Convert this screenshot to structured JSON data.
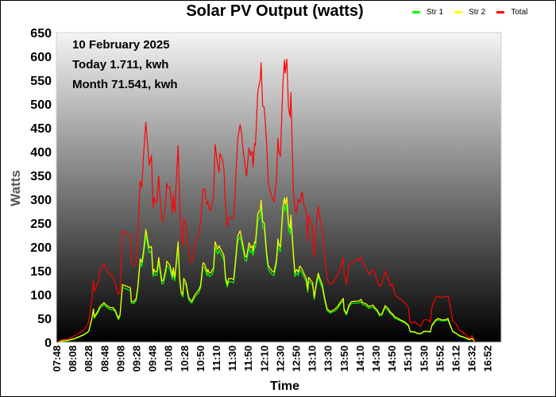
{
  "chart_data": {
    "type": "line",
    "title": "Solar PV Output (watts)",
    "xlabel": "Time",
    "ylabel": "Watts",
    "ylim": [
      0,
      650
    ],
    "xlim": [
      "07:48",
      "17:00"
    ],
    "yticks": [
      0,
      50,
      100,
      150,
      200,
      250,
      300,
      350,
      400,
      450,
      500,
      550,
      600,
      650
    ],
    "xtick_labels": [
      "07:48",
      "08:08",
      "08:28",
      "08:48",
      "09:08",
      "09:28",
      "09:48",
      "10:08",
      "10:28",
      "10:50",
      "11:10",
      "11:30",
      "11:50",
      "12:10",
      "12:30",
      "12:50",
      "13:10",
      "13:30",
      "13:50",
      "14:10",
      "14:30",
      "14:50",
      "15:10",
      "15:30",
      "15:52",
      "16:12",
      "16:32",
      "16:52"
    ],
    "grid": false,
    "legend_position": "top-right",
    "background": "vertical gradient light grey to black",
    "annotations": [
      "10 February 2025",
      "Today 1.711, kwh",
      "Month 71.541, kwh"
    ],
    "x": [
      "07:49",
      "07:55",
      "08:02",
      "08:11",
      "08:22",
      "08:28",
      "08:32",
      "08:34",
      "08:35",
      "08:40",
      "08:42",
      "08:47",
      "08:50",
      "08:55",
      "08:58",
      "09:01",
      "09:05",
      "09:07",
      "09:10",
      "09:16",
      "09:20",
      "09:21",
      "09:24",
      "09:27",
      "09:29",
      "09:32",
      "09:34",
      "09:36",
      "09:39",
      "09:42",
      "09:43",
      "09:46",
      "09:48",
      "09:49",
      "09:51",
      "09:53",
      "09:55",
      "09:57",
      "09:59",
      "10:01",
      "10:04",
      "10:05",
      "10:06",
      "10:09",
      "10:12",
      "10:13",
      "10:15",
      "10:19",
      "10:21",
      "10:23",
      "10:25",
      "10:26",
      "10:29",
      "10:32",
      "10:34",
      "10:36",
      "10:40",
      "10:45",
      "10:47",
      "10:50",
      "10:52",
      "10:55",
      "10:56",
      "10:58",
      "11:00",
      "11:03",
      "11:05",
      "11:08",
      "11:10",
      "11:11",
      "11:14",
      "11:16",
      "11:18",
      "11:20",
      "11:22",
      "11:24",
      "11:28",
      "11:31",
      "11:33",
      "11:36",
      "11:38",
      "11:40",
      "11:42",
      "11:44",
      "11:47",
      "11:49",
      "11:51",
      "11:52",
      "11:54",
      "11:55",
      "11:58",
      "12:01",
      "12:02",
      "12:04",
      "12:06",
      "12:09",
      "12:11",
      "12:14",
      "12:16",
      "12:18",
      "12:21",
      "12:23",
      "12:24",
      "12:26",
      "12:29",
      "12:31",
      "12:32",
      "12:34",
      "12:36",
      "12:38",
      "12:39",
      "12:42",
      "12:44",
      "12:46",
      "12:48",
      "12:50",
      "12:53",
      "12:55",
      "12:58",
      "13:00",
      "13:01",
      "13:04",
      "13:06",
      "13:08",
      "13:11",
      "13:13",
      "13:15",
      "13:18",
      "13:21",
      "13:24",
      "13:28",
      "13:30",
      "13:34",
      "13:37",
      "13:40",
      "13:44",
      "13:45",
      "13:48",
      "13:51",
      "13:54",
      "13:58",
      "14:01",
      "14:03",
      "14:06",
      "14:08",
      "14:12",
      "14:16",
      "14:21",
      "14:23",
      "14:26",
      "14:29",
      "14:32",
      "14:36",
      "14:40",
      "14:43",
      "14:45",
      "14:48",
      "14:51",
      "14:56",
      "15:00",
      "15:05",
      "15:07",
      "15:10",
      "15:12",
      "15:16",
      "15:20",
      "15:24",
      "15:29",
      "15:32",
      "15:34",
      "15:39",
      "15:42",
      "15:46",
      "15:51",
      "15:54",
      "15:57",
      "16:00",
      "16:04",
      "16:08",
      "16:15",
      "16:20",
      "16:24",
      "16:28"
    ],
    "series": [
      {
        "name": "Str 1",
        "color": "#00ff00",
        "values": [
          0,
          2,
          3,
          7,
          15,
          22,
          47,
          66,
          50,
          64,
          71,
          79,
          74,
          68,
          69,
          64,
          47,
          55,
          115,
          111,
          108,
          82,
          81,
          87,
          111,
          166,
          159,
          180,
          225,
          196,
          188,
          191,
          138,
          145,
          140,
          142,
          169,
          143,
          122,
          124,
          148,
          161,
          160,
          153,
          132,
          148,
          129,
          200,
          127,
          101,
          95,
          127,
          119,
          90,
          85,
          82,
          95,
          105,
          114,
          159,
          156,
          140,
          145,
          138,
          140,
          148,
          200,
          185,
          193,
          188,
          180,
          172,
          129,
          116,
          127,
          127,
          125,
          175,
          212,
          222,
          206,
          190,
          172,
          170,
          199,
          188,
          193,
          182,
          200,
          199,
          256,
          264,
          283,
          240,
          238,
          177,
          153,
          145,
          142,
          140,
          163,
          206,
          196,
          190,
          270,
          288,
          275,
          289,
          238,
          227,
          254,
          180,
          138,
          145,
          140,
          152,
          145,
          138,
          127,
          105,
          129,
          123,
          119,
          90,
          123,
          138,
          127,
          114,
          87,
          66,
          61,
          63,
          66,
          71,
          79,
          87,
          66,
          57,
          74,
          81,
          82,
          82,
          82,
          85,
          79,
          77,
          71,
          74,
          69,
          65,
          55,
          57,
          73,
          66,
          59,
          57,
          50,
          48,
          44,
          41,
          34,
          22,
          21,
          21,
          18,
          17,
          22,
          22,
          21,
          34,
          45,
          47,
          45,
          45,
          47,
          33,
          22,
          18,
          13,
          9,
          5,
          7,
          0
        ]
      },
      {
        "name": "Str 2",
        "color": "#ffff00",
        "values": [
          0,
          3,
          4,
          8,
          16,
          23,
          50,
          70,
          53,
          67,
          75,
          83,
          78,
          72,
          73,
          67,
          50,
          58,
          121,
          117,
          114,
          86,
          85,
          92,
          117,
          175,
          167,
          189,
          237,
          206,
          198,
          201,
          145,
          153,
          147,
          150,
          178,
          151,
          128,
          131,
          156,
          170,
          168,
          161,
          139,
          156,
          136,
          211,
          134,
          106,
          100,
          134,
          125,
          95,
          89,
          86,
          100,
          111,
          120,
          167,
          164,
          147,
          153,
          145,
          147,
          156,
          211,
          195,
          203,
          198,
          189,
          181,
          136,
          122,
          134,
          134,
          132,
          184,
          223,
          234,
          217,
          200,
          181,
          179,
          209,
          198,
          203,
          192,
          211,
          209,
          270,
          278,
          298,
          253,
          250,
          186,
          161,
          153,
          149,
          147,
          172,
          217,
          206,
          200,
          284,
          303,
          289,
          304,
          250,
          239,
          267,
          189,
          145,
          153,
          147,
          160,
          153,
          145,
          134,
          111,
          136,
          129,
          125,
          95,
          129,
          145,
          134,
          120,
          92,
          70,
          64,
          66,
          70,
          75,
          83,
          92,
          70,
          60,
          78,
          85,
          86,
          86,
          86,
          90,
          83,
          81,
          75,
          78,
          73,
          68,
          58,
          60,
          77,
          70,
          62,
          60,
          53,
          51,
          46,
          43,
          36,
          23,
          22,
          22,
          19,
          18,
          23,
          23,
          22,
          36,
          47,
          50,
          47,
          47,
          50,
          35,
          23,
          19,
          14,
          10,
          6,
          8,
          0
        ]
      },
      {
        "name": "Total",
        "color": "#ff0000",
        "values": [
          0,
          5,
          6,
          14,
          25,
          42,
          89,
          131,
          107,
          128,
          150,
          164,
          153,
          140,
          140,
          122,
          100,
          106,
          234,
          228,
          222,
          169,
          161,
          167,
          228,
          339,
          325,
          390,
          462,
          395,
          372,
          392,
          281,
          303,
          292,
          295,
          349,
          295,
          253,
          256,
          303,
          334,
          325,
          325,
          270,
          309,
          273,
          413,
          295,
          223,
          203,
          259,
          245,
          186,
          172,
          167,
          206,
          228,
          256,
          318,
          322,
          289,
          295,
          277,
          278,
          306,
          415,
          373,
          357,
          396,
          384,
          362,
          284,
          242,
          262,
          261,
          259,
          356,
          426,
          457,
          436,
          398,
          373,
          348,
          408,
          392,
          401,
          368,
          417,
          413,
          526,
          552,
          587,
          495,
          493,
          415,
          334,
          312,
          303,
          294,
          340,
          428,
          401,
          390,
          539,
          593,
          565,
          594,
          492,
          473,
          524,
          320,
          278,
          272,
          300,
          293,
          316,
          289,
          272,
          211,
          267,
          248,
          242,
          178,
          256,
          286,
          261,
          236,
          183,
          133,
          122,
          123,
          133,
          142,
          153,
          177,
          145,
          122,
          161,
          168,
          168,
          175,
          172,
          178,
          167,
          158,
          142,
          151,
          147,
          128,
          117,
          124,
          149,
          131,
          118,
          122,
          100,
          95,
          89,
          84,
          72,
          42,
          40,
          44,
          38,
          33,
          47,
          47,
          42,
          73,
          96,
          96,
          94,
          96,
          97,
          72,
          44,
          39,
          25,
          18,
          8,
          14,
          0
        ]
      }
    ]
  }
}
